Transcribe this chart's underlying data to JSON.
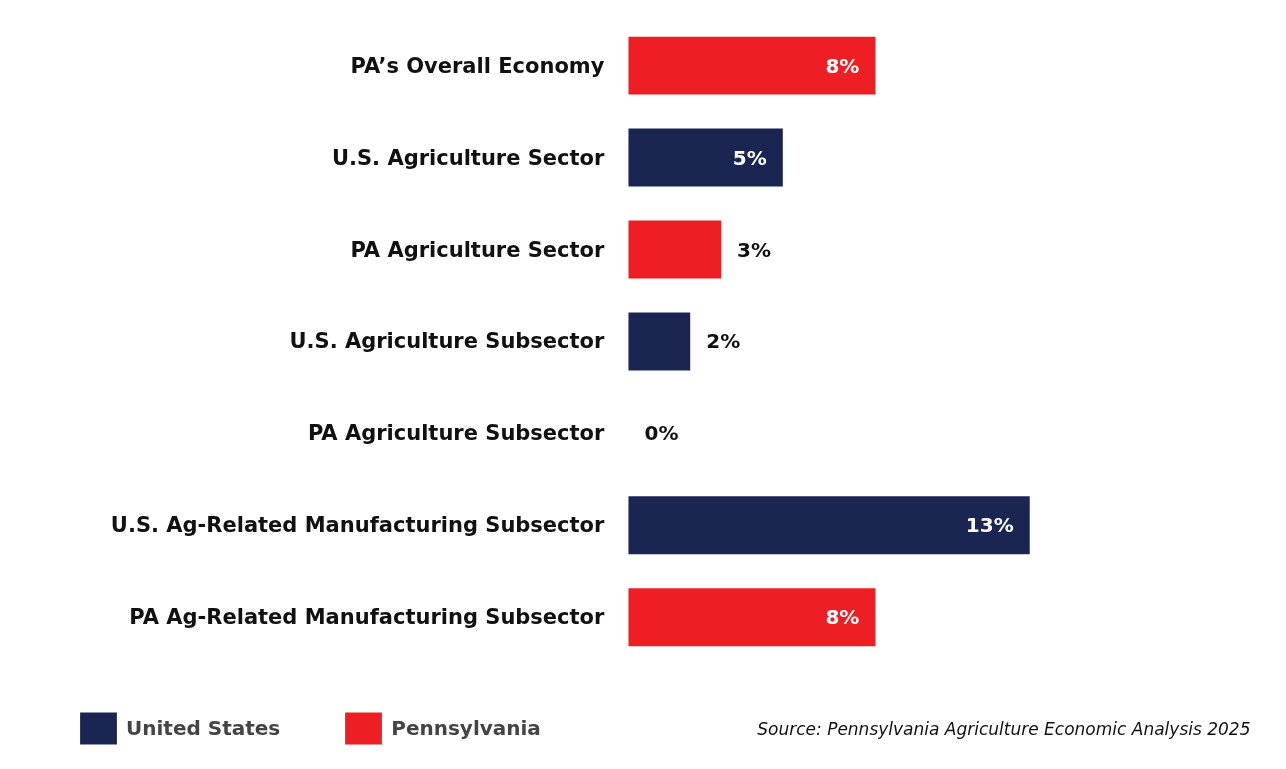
{
  "chart_data": {
    "type": "bar",
    "orientation": "horizontal",
    "categories": [
      "PA’s Overall Economy",
      "U.S. Agriculture Sector",
      "PA Agriculture Sector",
      "U.S. Agriculture Subsector",
      "PA Agriculture Subsector",
      "U.S. Ag-Related Manufacturing Subsector",
      "PA Ag-Related Manufacturing Subsector"
    ],
    "series": [
      {
        "name": "United States",
        "color": "#1b2551",
        "values": [
          null,
          5,
          null,
          2,
          null,
          13,
          null
        ],
        "value_labels": [
          null,
          "5%",
          null,
          "2%",
          null,
          "13%",
          null
        ]
      },
      {
        "name": "Pennsylvania",
        "color": "#ed1f24",
        "values": [
          8,
          null,
          3,
          null,
          0,
          null,
          8
        ],
        "value_labels": [
          "8%",
          null,
          "3%",
          null,
          "0%",
          null,
          "8%"
        ]
      }
    ],
    "legend": "bottom",
    "grid": false,
    "annotations": [
      "Source: Pennsylvania Agriculture Economic Analysis 2025"
    ]
  }
}
